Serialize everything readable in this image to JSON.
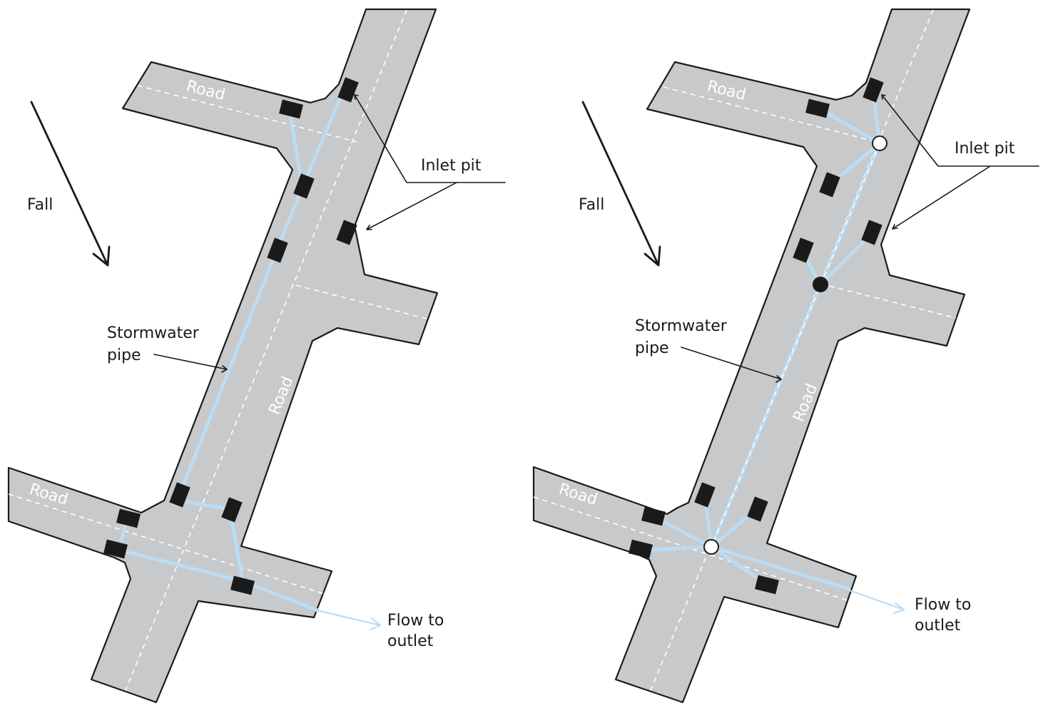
{
  "panels": [
    {
      "id": "left",
      "labels": {
        "fall": "Fall",
        "inlet_pit": "Inlet pit",
        "pipe_line1": "Stormwater",
        "pipe_line2": "pipe",
        "flow_line1": "Flow to",
        "flow_line2": "outlet",
        "road_top": "Road",
        "road_main": "Road",
        "road_bottom": "Road"
      }
    },
    {
      "id": "right",
      "labels": {
        "fall": "Fall",
        "inlet_pit": "Inlet pit",
        "pipe_line1": "Stormwater",
        "pipe_line2": "pipe",
        "flow_line1": "Flow to",
        "flow_line2": "outlet",
        "road_top": "Road",
        "road_main": "Road",
        "road_bottom": "Road"
      }
    }
  ],
  "colors": {
    "road": "#c8c9cb",
    "pipe": "#bcdcf3",
    "pit": "#1a1a1a",
    "outline": "#1a1a1a"
  }
}
